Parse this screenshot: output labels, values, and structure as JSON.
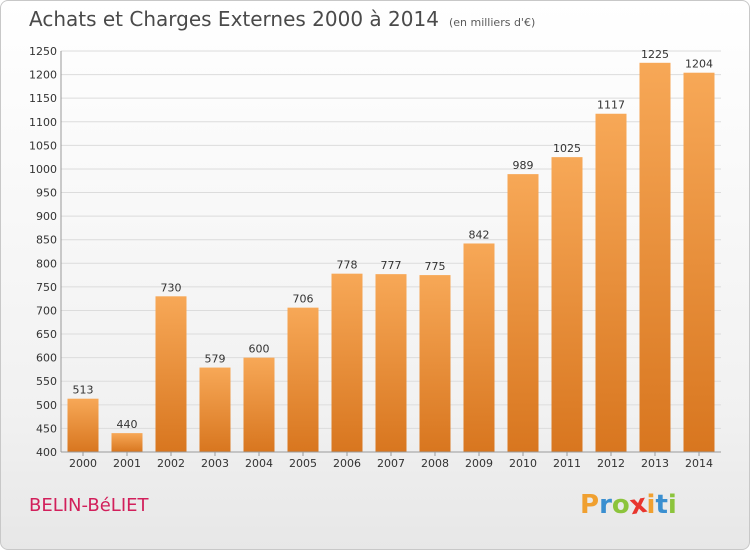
{
  "title": "Achats et Charges Externes 2000 à 2014",
  "unit": "(en milliers d'€)",
  "town": "BELIN-BéLIET",
  "logo": {
    "text": "Proxiti",
    "letters": [
      {
        "ch": "P",
        "color": "#f0a030"
      },
      {
        "ch": "r",
        "color": "#3a8fd0"
      },
      {
        "ch": "o",
        "color": "#8cc43c"
      },
      {
        "ch": "x",
        "color": "#e8352d"
      },
      {
        "ch": "i",
        "color": "#f0a030"
      },
      {
        "ch": "t",
        "color": "#3a8fd0"
      },
      {
        "ch": "i",
        "color": "#8cc43c"
      }
    ]
  },
  "colors": {
    "bar_top": "#f7a857",
    "bar_bottom": "#d8761f",
    "grid": "#dcdcdc",
    "axis": "#999999"
  },
  "chart_data": {
    "type": "bar",
    "categories": [
      "2000",
      "2001",
      "2002",
      "2003",
      "2004",
      "2005",
      "2006",
      "2007",
      "2008",
      "2009",
      "2010",
      "2011",
      "2012",
      "2013",
      "2014"
    ],
    "values": [
      513,
      440,
      730,
      579,
      600,
      706,
      778,
      777,
      775,
      842,
      989,
      1025,
      1117,
      1225,
      1204
    ],
    "ylim": [
      400,
      1250
    ],
    "yticks": [
      400,
      450,
      500,
      550,
      600,
      650,
      700,
      750,
      800,
      850,
      900,
      950,
      1000,
      1050,
      1100,
      1150,
      1200,
      1250
    ],
    "grid": true,
    "xlabel": "",
    "ylabel": ""
  }
}
